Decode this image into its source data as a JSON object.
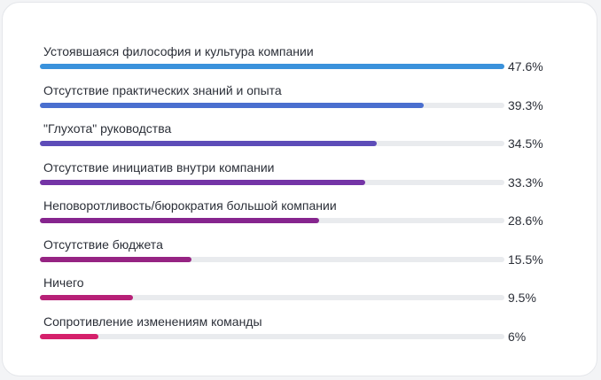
{
  "chart_data": {
    "type": "bar",
    "orientation": "horizontal",
    "categories": [
      "Устоявшаяся философия и культура компании",
      "Отсутствие практических знаний и опыта",
      "\"Глухота\" руководства",
      "Отсутствие инициатив внутри компании",
      "Неповоротливость/бюрократия большой компании",
      "Отсутствие бюджета",
      "Ничего",
      "Сопротивление изменениям команды"
    ],
    "values": [
      47.6,
      39.3,
      34.5,
      33.3,
      28.6,
      15.5,
      9.5,
      6
    ],
    "value_labels": [
      "47.6%",
      "39.3%",
      "34.5%",
      "33.3%",
      "28.6%",
      "15.5%",
      "9.5%",
      "6%"
    ],
    "xlim": [
      0,
      47.6
    ],
    "colors": [
      "#3a92dc",
      "#4a6fcf",
      "#5d4cb8",
      "#7434a6",
      "#86258e",
      "#962483",
      "#b72077",
      "#d5206b"
    ],
    "grid": false,
    "legend": "none"
  }
}
